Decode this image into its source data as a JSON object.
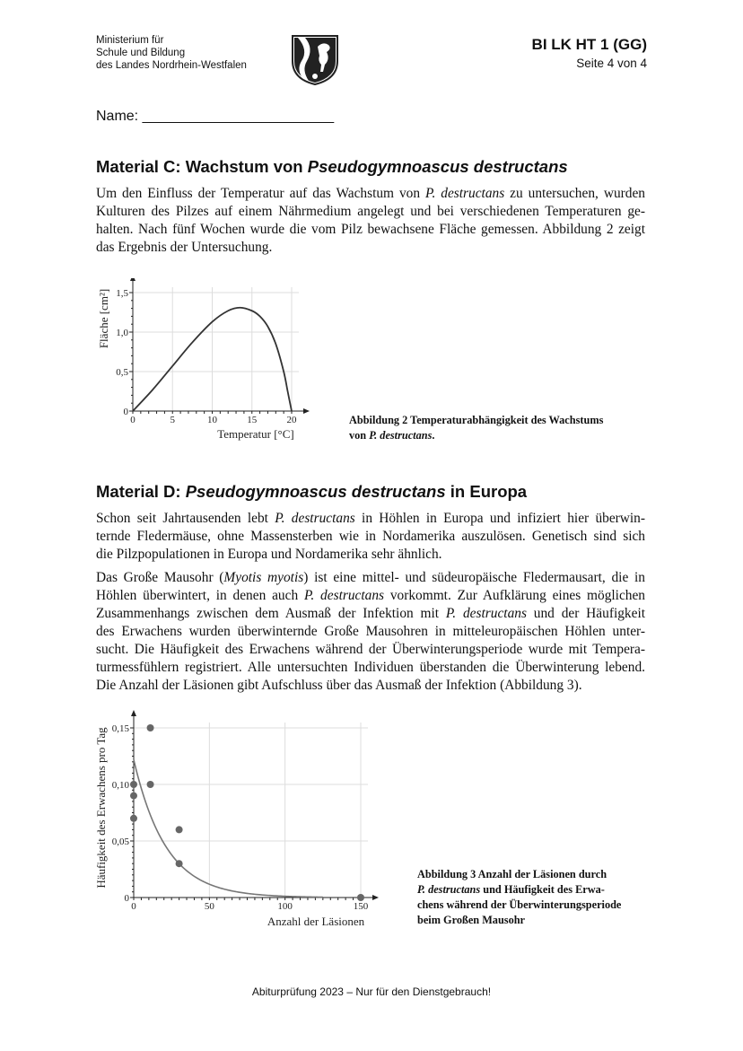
{
  "header": {
    "ministry_lines": [
      "Ministerium für",
      "Schule und Bildung",
      "des Landes Nordrhein-Westfalen"
    ],
    "logo": "nrw-coat-of-arms",
    "exam_code": "BI LK HT 1 (GG)",
    "page": "Seite 4 von 4"
  },
  "name_field": "Name: ________________________",
  "material_c": {
    "heading": "Material C: Wachstum von ",
    "heading_italic": "Pseudogymnoascus destructans",
    "paragraphs": [
      [
        [
          {
            "t": "Um den Einfluss der Temperatur auf das Wachstum von "
          },
          {
            "t": "P. destructans",
            "i": true
          },
          {
            "t": " zu untersuchen, wurden"
          }
        ],
        [
          {
            "t": "Kulturen des Pilzes auf einem Nährmedium angelegt und bei verschiedenen Temperaturen ge-"
          }
        ],
        [
          {
            "t": "halten. Nach fünf Wochen wurde die vom Pilz bewachsene Fläche gemessen. Abbildung 2 zeigt"
          }
        ],
        [
          {
            "t": "das Ergebnis der Untersuchung."
          }
        ]
      ]
    ],
    "caption": [
      [
        {
          "t": "Abbildung 2    Temperaturabhängigkeit des Wachstums"
        }
      ],
      [
        {
          "t": "von "
        },
        {
          "t": "P. destructans",
          "i": true
        },
        {
          "t": "."
        }
      ]
    ]
  },
  "material_d": {
    "heading_italic": "Pseudogymnoascus destructans",
    "heading_prefix": "Material D: ",
    "heading_suffix": " in Europa",
    "paragraphs": [
      [
        [
          {
            "t": "Schon seit Jahrtausenden lebt "
          },
          {
            "t": "P. destructans",
            "i": true
          },
          {
            "t": " in Höhlen in Europa und infiziert hier überwin-"
          }
        ],
        [
          {
            "t": "ternde Fledermäuse, ohne Massensterben wie in Nordamerika auszulösen. Genetisch sind sich"
          }
        ],
        [
          {
            "t": "die Pilzpopulationen in Europa und Nordamerika sehr ähnlich."
          }
        ]
      ],
      [
        [
          {
            "t": "Das Große Mausohr ("
          },
          {
            "t": "Myotis myotis",
            "i": true
          },
          {
            "t": ") ist eine mittel- und südeuropäische Fledermausart, die in"
          }
        ],
        [
          {
            "t": "Höhlen überwintert, in denen auch "
          },
          {
            "t": "P. destructans",
            "i": true
          },
          {
            "t": " vorkommt. Zur Aufklärung eines möglichen"
          }
        ],
        [
          {
            "t": "Zusammenhangs zwischen dem Ausmaß der Infektion mit "
          },
          {
            "t": "P. destructans",
            "i": true
          },
          {
            "t": " und der Häufigkeit"
          }
        ],
        [
          {
            "t": "des Erwachens wurden überwinternde Große Mausohren in mitteleuropäischen Höhlen unter-"
          }
        ],
        [
          {
            "t": "sucht. Die Häufigkeit des Erwachens während der Überwinterungsperiode wurde mit Tempera-"
          }
        ],
        [
          {
            "t": "turmessfühlern registriert. Alle untersuchten Individuen überstanden die Überwinterung lebend."
          }
        ],
        [
          {
            "t": "Die Anzahl der Läsionen gibt Aufschluss über das Ausmaß der Infektion (Abbildung 3)."
          }
        ]
      ]
    ],
    "caption": [
      [
        {
          "t": "Abbildung 3    Anzahl der Läsionen durch"
        }
      ],
      [
        {
          "t": "P. destructans",
          "i": true
        },
        {
          "t": " und Häufigkeit des Erwa-"
        }
      ],
      [
        {
          "t": "chens während der Überwinterungsperiode"
        }
      ],
      [
        {
          "t": "beim Großen Mausohr"
        }
      ]
    ]
  },
  "footer": "Abiturprüfung 2023 – Nur für den Dienstgebrauch!",
  "chart_data": [
    {
      "type": "line",
      "xlabel": "Temperatur [°C]",
      "ylabel": "Fläche [cm²]",
      "xlim": [
        0,
        20
      ],
      "ylim": [
        0,
        1.5
      ],
      "xticks": [
        "0",
        "5",
        "10",
        "15",
        "20"
      ],
      "yticks": [
        "0",
        "0,5",
        "1,0",
        "1,5"
      ],
      "grid": true,
      "x": [
        0,
        2.5,
        5,
        7.5,
        10,
        12,
        13.5,
        15,
        16,
        17,
        18,
        19,
        19.5,
        20
      ],
      "y": [
        0,
        0.27,
        0.57,
        0.87,
        1.13,
        1.27,
        1.31,
        1.27,
        1.2,
        1.07,
        0.85,
        0.5,
        0.25,
        0
      ],
      "color": "#333333"
    },
    {
      "type": "scatter",
      "xlabel": "Anzahl der Läsionen",
      "ylabel": "Häufigkeit des Erwachens pro Tag",
      "xlim": [
        0,
        150
      ],
      "ylim": [
        0,
        0.15
      ],
      "xticks": [
        "0",
        "50",
        "100",
        "150"
      ],
      "yticks": [
        "0",
        "0,05",
        "0,10",
        "0,15"
      ],
      "grid": true,
      "points": [
        [
          0,
          0.1
        ],
        [
          0,
          0.09
        ],
        [
          0,
          0.07
        ],
        [
          11,
          0.15
        ],
        [
          11,
          0.1
        ],
        [
          30,
          0.06
        ],
        [
          30,
          0.03
        ],
        [
          150,
          0
        ]
      ],
      "fit_curve": {
        "type": "exponential",
        "a": 0.122,
        "k": 0.0468,
        "x_range": [
          0,
          125
        ]
      },
      "point_color": "#666666",
      "curve_color": "#777777"
    }
  ]
}
